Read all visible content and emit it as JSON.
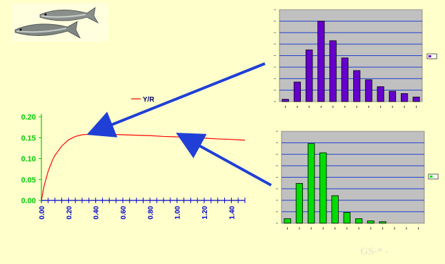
{
  "colors": {
    "background": "#ffffcc",
    "axis_green": "#00cc00",
    "tick_blue": "#0000cc",
    "curve_red": "#ff0000",
    "arrow_blue": "#1f3fd6",
    "plot_gray": "#c0c0c0",
    "bar_purple": "#6600cc",
    "bar_green": "#00dd00"
  },
  "icons": {
    "fish": "fish-illustration"
  },
  "footer": {
    "mark": "GS-* -"
  },
  "chart_data": [
    {
      "type": "line",
      "title": "",
      "legend": [
        "Y/R"
      ],
      "legend_position": "top-center",
      "xlabel": "",
      "ylabel": "",
      "xlim": [
        0,
        1.5
      ],
      "ylim": [
        0,
        0.2
      ],
      "x_ticks": [
        "0.00",
        "0.20",
        "0.40",
        "0.60",
        "0.80",
        "1.00",
        "1.20",
        "1.40"
      ],
      "y_ticks": [
        "0.00",
        "0.05",
        "0.10",
        "0.15",
        "0.20"
      ],
      "series": [
        {
          "name": "Y/R",
          "x": [
            0,
            0.02,
            0.05,
            0.08,
            0.1,
            0.15,
            0.2,
            0.25,
            0.3,
            0.35,
            0.4,
            0.5,
            0.6,
            0.7,
            0.8,
            0.9,
            1.0,
            1.1,
            1.2,
            1.3,
            1.4,
            1.5
          ],
          "y": [
            0,
            0.035,
            0.07,
            0.095,
            0.108,
            0.13,
            0.145,
            0.153,
            0.157,
            0.158,
            0.158,
            0.158,
            0.157,
            0.156,
            0.155,
            0.153,
            0.152,
            0.15,
            0.149,
            0.147,
            0.146,
            0.144
          ]
        }
      ],
      "grid": false
    },
    {
      "type": "bar",
      "title": "",
      "categories": [
        "1",
        "2",
        "3",
        "4",
        "5",
        "6",
        "7",
        "8",
        "9",
        "10",
        "11",
        "12"
      ],
      "series": [
        {
          "values": [
            2,
            17,
            45,
            70,
            53,
            38,
            27,
            19,
            13,
            9,
            7,
            4
          ]
        }
      ],
      "ylim": [
        0,
        80
      ],
      "legend_position": "right",
      "grid": true
    },
    {
      "type": "bar",
      "title": "",
      "categories": [
        "1",
        "2",
        "3",
        "4",
        "5",
        "6",
        "7",
        "8",
        "9",
        "10",
        "11",
        "12"
      ],
      "series": [
        {
          "values": [
            3,
            26,
            52,
            46,
            18,
            7,
            3,
            1.5,
            1,
            0,
            0,
            0
          ]
        }
      ],
      "ylim": [
        0,
        60
      ],
      "legend_position": "right",
      "grid": true
    }
  ]
}
